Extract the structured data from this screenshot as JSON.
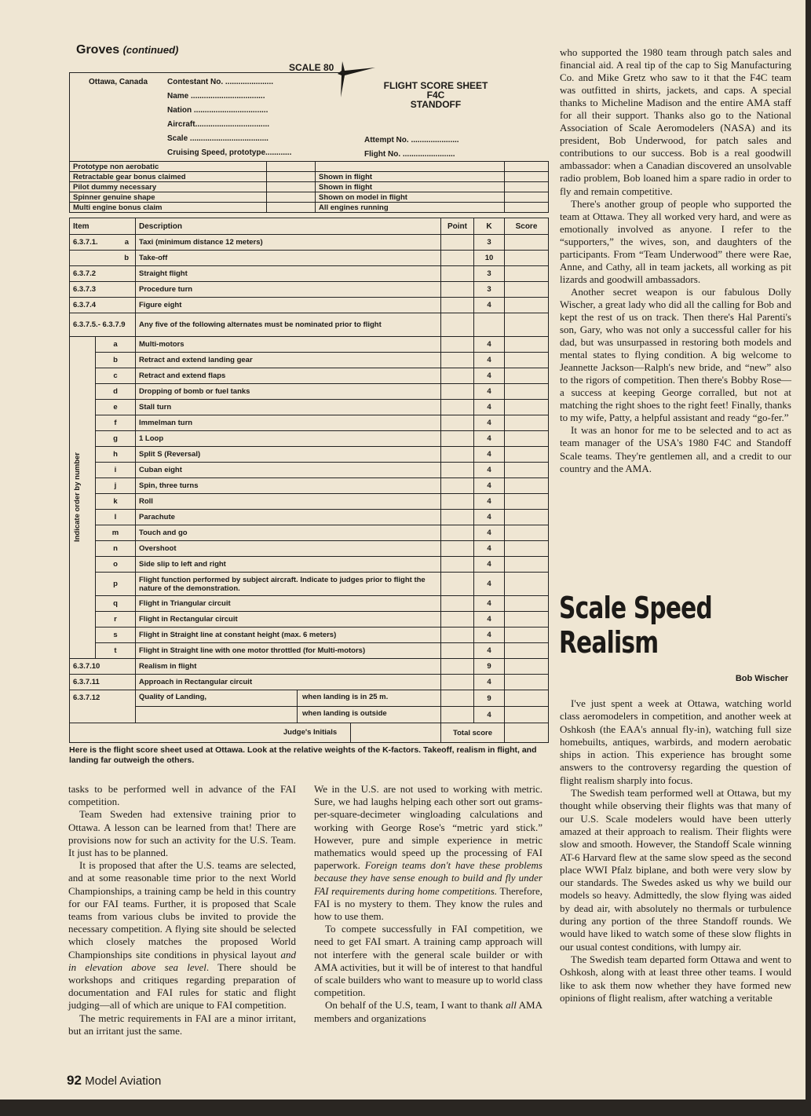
{
  "header": {
    "running_head": "Groves",
    "running_head_suffix": "(continued)"
  },
  "form": {
    "logo": "SCALE 80",
    "location": "Ottawa, Canada",
    "fields": [
      "Contestant No. ......................",
      "Name ..................................",
      "Nation ..................................",
      "Aircraft..................................",
      "Scale ....................................",
      "Cruising Speed, prototype............"
    ],
    "fields_right": [
      "Attempt No. ......................",
      "Flight No. ........................"
    ],
    "title_lines": [
      "FLIGHT SCORE SHEET",
      "F4C",
      "STANDOFF"
    ],
    "bonus": [
      {
        "label": "Prototype non aerobatic",
        "desc": ""
      },
      {
        "label": "Retractable gear bonus claimed",
        "desc": "Shown in flight"
      },
      {
        "label": "Pilot dummy necessary",
        "desc": "Shown in flight"
      },
      {
        "label": "Spinner genuine shape",
        "desc": "Shown on model in flight"
      },
      {
        "label": "Multi engine bonus claim",
        "desc": "All engines running"
      }
    ],
    "columns": {
      "item": "Item",
      "description": "Description",
      "point": "Point",
      "k": "K",
      "score": "Score"
    },
    "vertical_label": "Indicate order by number",
    "rows": [
      {
        "item": "6.3.7.1.",
        "letter": "a",
        "desc": "Taxi (minimum distance 12 meters)",
        "k": "3"
      },
      {
        "item": "",
        "letter": "b",
        "desc": "Take-off",
        "k": "10"
      },
      {
        "item": "6.3.7.2",
        "letter": "",
        "desc": "Straight flight",
        "k": "3"
      },
      {
        "item": "6.3.7.3",
        "letter": "",
        "desc": "Procedure turn",
        "k": "3"
      },
      {
        "item": "6.3.7.4",
        "letter": "",
        "desc": "Figure eight",
        "k": "4"
      },
      {
        "item": "6.3.7.5.- 6.3.7.9",
        "letter": "",
        "desc": "Any five of the following alternates must be nominated prior to flight",
        "k": "",
        "tall": true
      }
    ],
    "alternates": [
      {
        "letter": "a",
        "desc": "Multi-motors",
        "k": "4"
      },
      {
        "letter": "b",
        "desc": "Retract and extend landing gear",
        "k": "4"
      },
      {
        "letter": "c",
        "desc": "Retract and extend flaps",
        "k": "4"
      },
      {
        "letter": "d",
        "desc": "Dropping of bomb or fuel tanks",
        "k": "4"
      },
      {
        "letter": "e",
        "desc": "Stall turn",
        "k": "4"
      },
      {
        "letter": "f",
        "desc": "Immelman turn",
        "k": "4"
      },
      {
        "letter": "g",
        "desc": "1 Loop",
        "k": "4"
      },
      {
        "letter": "h",
        "desc": "Split S    (Reversal)",
        "k": "4"
      },
      {
        "letter": "i",
        "desc": "Cuban eight",
        "k": "4"
      },
      {
        "letter": "j",
        "desc": "Spin,    three turns",
        "k": "4"
      },
      {
        "letter": "k",
        "desc": "Roll",
        "k": "4"
      },
      {
        "letter": "l",
        "desc": "Parachute",
        "k": "4"
      },
      {
        "letter": "m",
        "desc": "Touch and go",
        "k": "4"
      },
      {
        "letter": "n",
        "desc": "Overshoot",
        "k": "4"
      },
      {
        "letter": "o",
        "desc": "Side slip to left and right",
        "k": "4"
      },
      {
        "letter": "p",
        "desc": "Flight function performed by subject aircraft. Indicate to judges prior to flight the nature of the demonstration.",
        "k": "4",
        "tall": true
      },
      {
        "letter": "q",
        "desc": "Flight in Triangular circuit",
        "k": "4"
      },
      {
        "letter": "r",
        "desc": "Flight in Rectangular circuit",
        "k": "4"
      },
      {
        "letter": "s",
        "desc": "Flight in Straight line at constant height (max. 6 meters)",
        "k": "4"
      },
      {
        "letter": "t",
        "desc": "Flight in Straight line with one motor throttled (for Multi-motors)",
        "k": "4"
      }
    ],
    "final_rows": [
      {
        "item": "6.3.7.10",
        "desc": "Realism in flight",
        "k": "9"
      },
      {
        "item": "6.3.7.11",
        "desc": "Approach in Rectangular circuit",
        "k": "4"
      }
    ],
    "landing": {
      "item": "6.3.7.12",
      "desc": "Quality of Landing,",
      "opt1": "when landing is in 25 m.",
      "k1": "9",
      "opt2": "when landing is outside",
      "k2": "4"
    },
    "judges_initials": "Judge's Initials",
    "total_score": "Total score"
  },
  "caption": "Here is the flight score sheet used at Ottawa. Look at the relative weights of the K-factors. Takeoff, realism in flight, and landing far outweigh the others.",
  "columns": {
    "col1": [
      [
        {
          "t": "tasks to be performed well in advance of the FAI competition."
        }
      ],
      [
        {
          "t": "Team Sweden had extensive training prior to Ottawa. A lesson can be learned from that! There are provisions now for such an activity for the U.S. Team. It just has to be planned."
        }
      ],
      [
        {
          "t": "It is proposed that after the U.S. teams are selected, and at some reasonable time prior to the next World Championships, a training camp be held in this country for our FAI teams. Further, it is proposed that Scale teams from various clubs be invited to provide the necessary competition. A flying site should be selected which closely matches the proposed World Championships site conditions in physical layout "
        },
        {
          "t": "and in elevation above sea level",
          "i": true
        },
        {
          "t": ". There should be workshops and critiques regarding preparation of documentation and FAI rules for static and flight judging—all of which are unique to FAI competition."
        }
      ],
      [
        {
          "t": "The metric requirements in FAI are a minor irritant, but an irritant just the same."
        }
      ]
    ],
    "col2": [
      [
        {
          "t": "We in the U.S. are not used to working with metric. Sure, we had laughs helping each other sort out grams-per-square-decimeter wingloading calculations and working with George Rose's “metric yard stick.” However, pure and simple experience in metric mathematics would speed up the processing of FAI paperwork. "
        },
        {
          "t": "Foreign teams don't have these problems because they have sense enough to build and fly under FAI requirements during home competitions.",
          "i": true
        },
        {
          "t": " Therefore, FAI is no mystery to them. They know the rules and how to use them."
        }
      ],
      [
        {
          "t": "To compete successfully in FAI competition, we need to get FAI smart. A training camp approach will not interfere with the general scale builder or with AMA activities, but it will be of interest to that handful of scale builders who want to measure up to world class competition."
        }
      ],
      [
        {
          "t": "On behalf of the U.S, team, I want to thank "
        },
        {
          "t": "all",
          "i": true
        },
        {
          "t": " AMA members and organizations"
        }
      ]
    ],
    "col3": [
      [
        {
          "t": "who supported the 1980 team through patch sales and financial aid. A real tip of the cap to Sig Manufacturing Co. and Mike Gretz who saw to it that the F4C team was outfitted in shirts, jackets, and caps. A special thanks to Micheline Madison and the entire AMA staff for all their support. Thanks also go to the National Association of Scale Aeromodelers (NASA) and its president, Bob Underwood, for patch sales and contributions to our success. Bob is a real goodwill ambassador: when a Canadian discovered an unsolvable radio problem, Bob loaned him a spare radio in order to fly and remain competitive."
        }
      ],
      [
        {
          "t": "There's another group of people who supported the team at Ottawa. They all worked very hard, and were as emotionally involved as anyone. I refer to the “supporters,” the wives, son, and daughters of the participants. From “Team Underwood” there were Rae, Anne, and Cathy, all in team jackets, all working as pit lizards and goodwill ambassadors."
        }
      ],
      [
        {
          "t": "Another secret weapon is our fabulous Dolly Wischer, a great lady who did all the calling for Bob and kept the rest of us on track. Then there's Hal Parenti's son, Gary, who was not only a successful caller for his dad, but was unsurpassed in restoring both models and mental states to flying condition. A big welcome to Jeannette Jackson—Ralph's new bride, and “new” also to the rigors of competition. Then there's Bobby Rose—a success at keeping George corralled, but not at matching the right shoes to the right feet! Finally, thanks to my wife, Patty, a helpful assistant and ready “go-fer.”"
        }
      ],
      [
        {
          "t": "It was an honor for me to be selected and to act as team manager of the USA's 1980 F4C and Standoff Scale teams. They're gentlemen all, and a credit to our country and the AMA."
        }
      ]
    ],
    "col4": [
      [
        {
          "t": "I've just spent a week at Ottawa, watching world class aeromodelers in competition, and another week at Oshkosh (the EAA's annual fly-in), watching full size homebuilts, antiques, warbirds, and modern aerobatic ships in action. This experience has brought some answers to the controversy regarding the question of flight realism sharply into focus."
        }
      ],
      [
        {
          "t": "The Swedish team performed well at Ottawa, but my thought while observing their flights was that many of our U.S. Scale modelers would have been utterly amazed at their approach to realism. Their flights were slow and smooth. However, the Standoff Scale winning AT-6 Harvard flew at the same slow speed as the second place WWI Pfalz biplane, and both were very slow by our standards. The Swedes asked us why we build our models so heavy. Admittedly, the slow flying was aided by dead air, with absolutely no thermals or turbulence during any portion of the three Standoff rounds. We would have liked to watch some of these slow flights in our usual contest conditions, with lumpy air."
        }
      ],
      [
        {
          "t": "The Swedish team departed form Ottawa and went to Oshkosh, along with at least three other teams. I would like to ask them now whether they have formed new opinions of flight realism, after watching a veritable"
        }
      ]
    ]
  },
  "article2": {
    "title_line1": "Scale Speed",
    "title_line2": "Realism",
    "byline": "Bob Wischer"
  },
  "footer": {
    "page_number": "92",
    "magazine": "Model Aviation"
  }
}
